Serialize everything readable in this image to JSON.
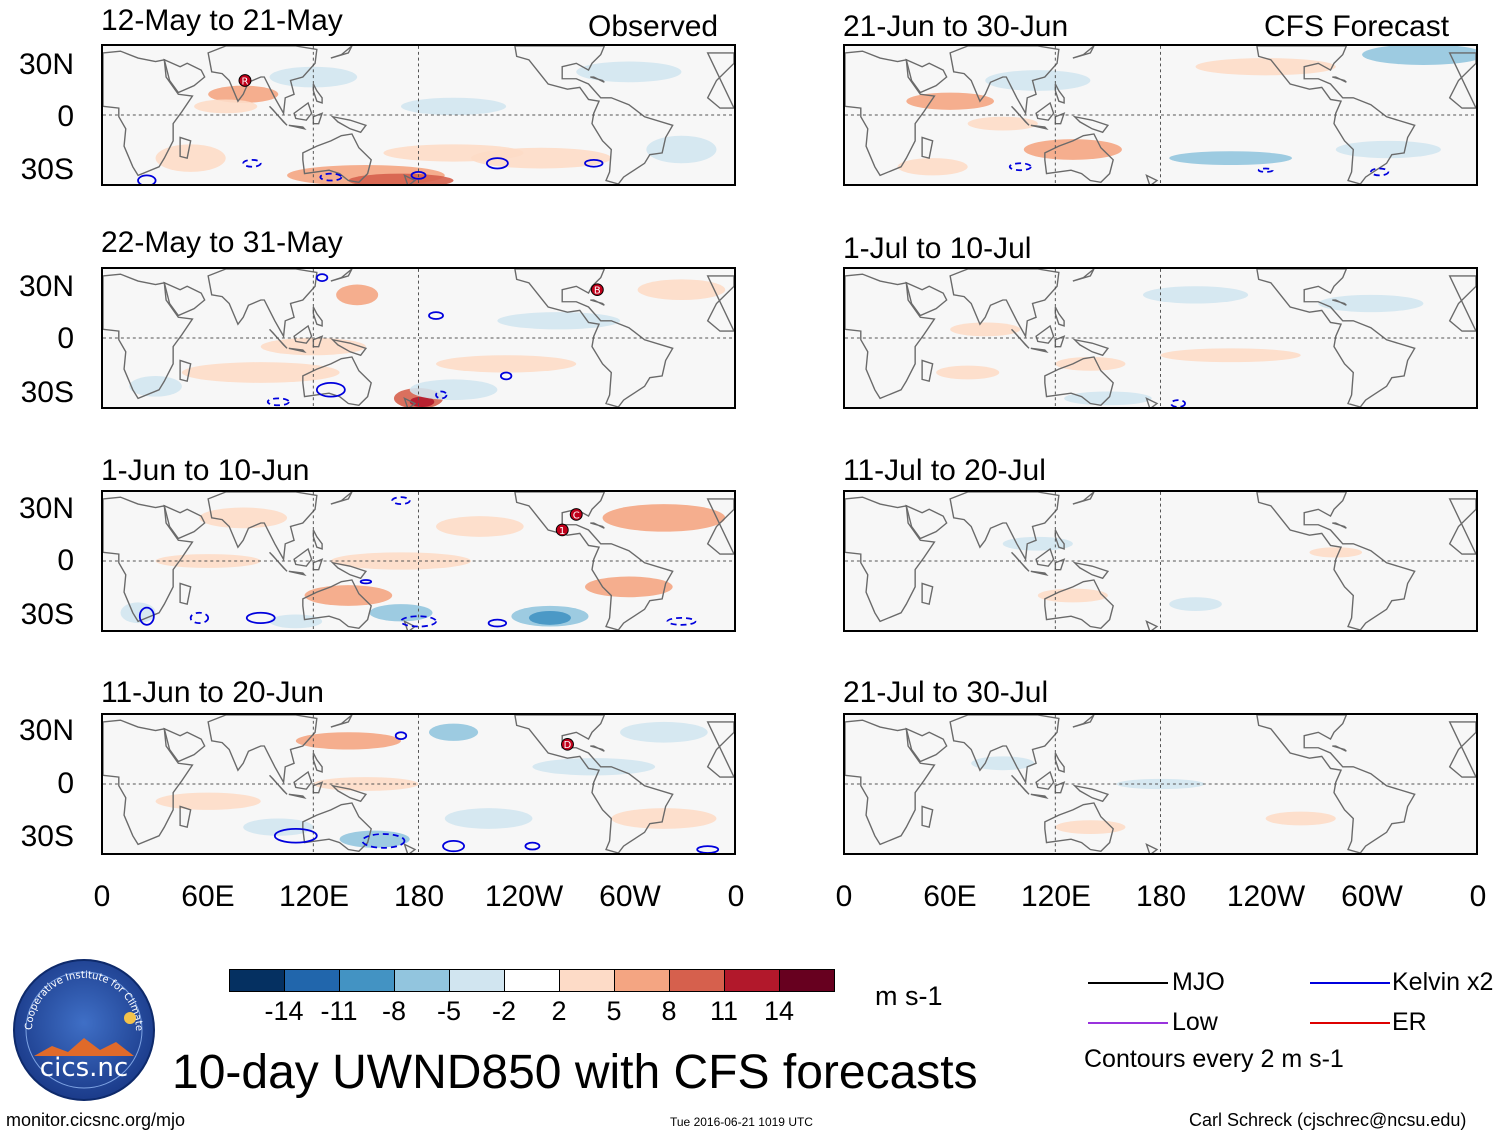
{
  "headers": {
    "observed": "Observed",
    "forecast": "CFS Forecast"
  },
  "observed_panels": [
    {
      "title": "12-May to 21-May"
    },
    {
      "title": "22-May to 31-May"
    },
    {
      "title": "1-Jun to 10-Jun"
    },
    {
      "title": "11-Jun to 20-Jun"
    }
  ],
  "forecast_panels": [
    {
      "title": "21-Jun to 30-Jun"
    },
    {
      "title": "1-Jul to 10-Jul"
    },
    {
      "title": "11-Jul to 20-Jul"
    },
    {
      "title": "21-Jul to 30-Jul"
    }
  ],
  "lat_labels": [
    "30N",
    "0",
    "30S"
  ],
  "lon_labels": [
    "0",
    "60E",
    "120E",
    "180",
    "120W",
    "60W",
    "0"
  ],
  "colorbar": {
    "colors": [
      "#053061",
      "#2166ac",
      "#4393c3",
      "#92c5de",
      "#d1e5f0",
      "#ffffff",
      "#fddbc7",
      "#f4a582",
      "#d6604d",
      "#b2182b",
      "#67001f"
    ],
    "labels": [
      "-14",
      "-11",
      "-8",
      "-5",
      "-2",
      "2",
      "5",
      "8",
      "11",
      "14"
    ],
    "units": "m s-1"
  },
  "legend": {
    "items": [
      {
        "label": "MJO",
        "color": "#000000"
      },
      {
        "label": "Kelvin x2",
        "color": "#0000dd"
      },
      {
        "label": "Low",
        "color": "#9933dd"
      },
      {
        "label": "ER",
        "color": "#dd0000"
      }
    ],
    "note": "Contours every 2 m s-1"
  },
  "storm_markers": [
    {
      "label": "R"
    },
    {
      "label": "B"
    },
    {
      "label": "C"
    },
    {
      "label": "1"
    },
    {
      "label": "D"
    }
  ],
  "logo": {
    "text": "cics.nc",
    "ring": "Cooperative Institute for Climate and Satellites"
  },
  "footer": {
    "main_title": "10-day UWND850 with CFS forecasts",
    "url": "monitor.cicsnc.org/mjo",
    "timestamp": "Tue 2016-06-21 1019 UTC",
    "credit": "Carl Schreck (cjschrec@ncsu.edu)"
  }
}
